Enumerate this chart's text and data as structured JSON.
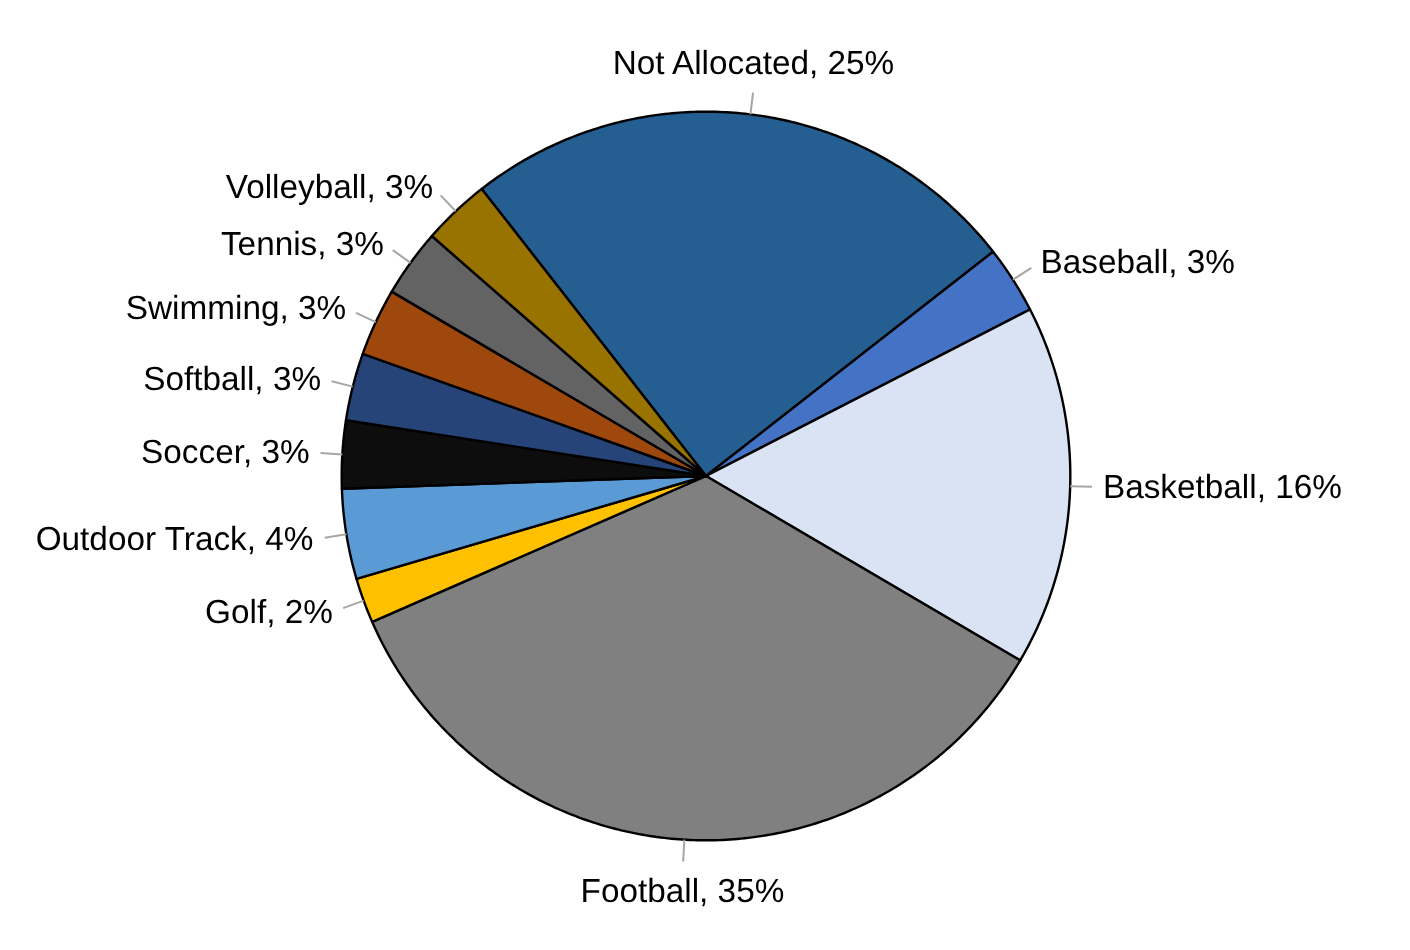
{
  "chart_data": {
    "type": "pie",
    "categories": [
      "Not Allocated",
      "Baseball",
      "Basketball",
      "Football",
      "Golf",
      "Outdoor Track",
      "Soccer",
      "Softball",
      "Swimming",
      "Tennis",
      "Volleyball"
    ],
    "values": [
      25,
      3,
      16,
      35,
      2,
      4,
      3,
      3,
      3,
      3,
      3
    ],
    "colors": [
      "#255e91",
      "#4472c4",
      "#dae3f3",
      "#808080",
      "#ffc000",
      "#5b9bd5",
      "#0d0d0d",
      "#264478",
      "#9e480e",
      "#636363",
      "#997300"
    ],
    "value_labels": [
      "25%",
      "3%",
      "16%",
      "35%",
      "2%",
      "4%",
      "3%",
      "3%",
      "3%",
      "3%",
      "3%"
    ]
  }
}
